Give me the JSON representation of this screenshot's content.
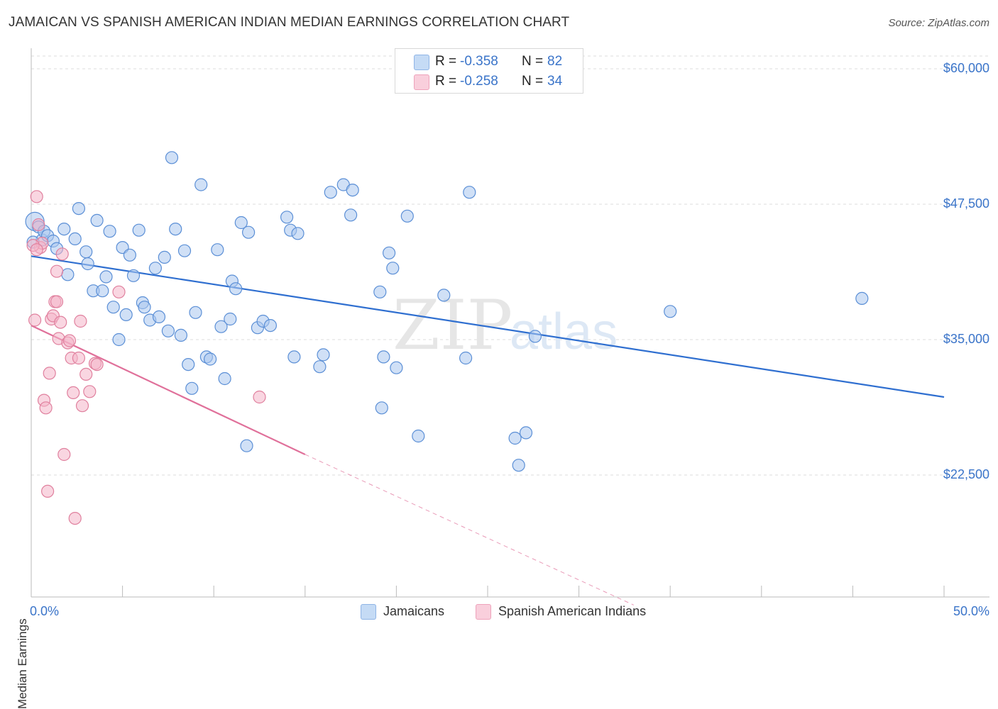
{
  "title": "JAMAICAN VS SPANISH AMERICAN INDIAN MEDIAN EARNINGS CORRELATION CHART",
  "source": "Source: ZipAtlas.com",
  "watermark": {
    "zip": "ZIP",
    "atlas": "atlas"
  },
  "legend": {
    "rows": [
      {
        "r_label": "R =",
        "r_value": "-0.358",
        "n_label": "N =",
        "n_value": "82",
        "color": "#a9c7ee"
      },
      {
        "r_label": "R =",
        "r_value": "-0.258",
        "n_label": "N =",
        "n_value": "34",
        "color": "#f4b5c8"
      }
    ]
  },
  "bottom_legend": [
    {
      "label": "Jamaicans",
      "color": "#a9c7ee"
    },
    {
      "label": "Spanish American Indians",
      "color": "#f4b5c8"
    }
  ],
  "chart_data": {
    "type": "scatter",
    "title": "JAMAICAN VS SPANISH AMERICAN INDIAN MEDIAN EARNINGS CORRELATION CHART",
    "xlabel": "",
    "ylabel": "Median Earnings",
    "xlim": [
      0,
      50
    ],
    "ylim": [
      11000,
      62000
    ],
    "x_tick_labels": [
      "0.0%",
      "50.0%"
    ],
    "y_ticks": [
      22500,
      35000,
      47500,
      60000
    ],
    "y_tick_labels": [
      "$22,500",
      "$35,000",
      "$47,500",
      "$60,000"
    ],
    "grid": true,
    "legend_placement": "top-center",
    "series": [
      {
        "name": "Jamaicans",
        "color": "#a9c7ee",
        "stroke": "#5b8fd6",
        "trend": {
          "x": [
            0,
            50
          ],
          "y": [
            42700,
            29700
          ],
          "color": "#2f6fd0"
        },
        "points": [
          [
            0.2,
            45.9
          ],
          [
            0.4,
            45.4
          ],
          [
            0.6,
            44.2
          ],
          [
            0.7,
            45.0
          ],
          [
            0.9,
            44.6
          ],
          [
            1.2,
            44.1
          ],
          [
            1.4,
            43.4
          ],
          [
            1.8,
            45.2
          ],
          [
            2.0,
            41.0
          ],
          [
            2.4,
            44.3
          ],
          [
            2.6,
            47.1
          ],
          [
            3.0,
            43.1
          ],
          [
            3.1,
            42.0
          ],
          [
            3.4,
            39.5
          ],
          [
            3.6,
            46.0
          ],
          [
            3.9,
            39.5
          ],
          [
            4.1,
            40.8
          ],
          [
            4.3,
            45.0
          ],
          [
            4.5,
            38.0
          ],
          [
            4.8,
            35.0
          ],
          [
            5.0,
            43.5
          ],
          [
            5.2,
            37.3
          ],
          [
            5.4,
            42.8
          ],
          [
            5.6,
            40.9
          ],
          [
            5.9,
            45.1
          ],
          [
            6.1,
            38.4
          ],
          [
            6.2,
            38.0
          ],
          [
            6.5,
            36.8
          ],
          [
            6.8,
            41.6
          ],
          [
            7.0,
            37.1
          ],
          [
            7.3,
            42.6
          ],
          [
            7.5,
            35.8
          ],
          [
            7.7,
            51.8
          ],
          [
            7.9,
            45.2
          ],
          [
            8.2,
            35.4
          ],
          [
            8.4,
            43.2
          ],
          [
            8.6,
            32.7
          ],
          [
            8.8,
            30.5
          ],
          [
            9.0,
            37.5
          ],
          [
            9.3,
            49.3
          ],
          [
            9.6,
            33.4
          ],
          [
            9.8,
            33.2
          ],
          [
            10.2,
            43.3
          ],
          [
            10.4,
            36.2
          ],
          [
            10.6,
            31.4
          ],
          [
            10.9,
            36.9
          ],
          [
            11.0,
            40.4
          ],
          [
            11.2,
            39.7
          ],
          [
            11.5,
            45.8
          ],
          [
            11.8,
            25.2
          ],
          [
            11.9,
            44.9
          ],
          [
            12.4,
            36.1
          ],
          [
            12.7,
            36.7
          ],
          [
            13.1,
            36.3
          ],
          [
            14.0,
            46.3
          ],
          [
            14.2,
            45.1
          ],
          [
            14.4,
            33.4
          ],
          [
            14.6,
            44.8
          ],
          [
            15.8,
            32.5
          ],
          [
            16.0,
            33.6
          ],
          [
            16.4,
            48.6
          ],
          [
            17.1,
            49.3
          ],
          [
            17.5,
            46.5
          ],
          [
            17.6,
            48.8
          ],
          [
            19.1,
            39.4
          ],
          [
            19.2,
            28.7
          ],
          [
            19.3,
            33.4
          ],
          [
            19.6,
            43.0
          ],
          [
            19.8,
            41.6
          ],
          [
            20.0,
            32.4
          ],
          [
            20.6,
            46.4
          ],
          [
            21.2,
            26.1
          ],
          [
            22.6,
            39.1
          ],
          [
            23.8,
            33.3
          ],
          [
            24.0,
            48.6
          ],
          [
            26.5,
            25.9
          ],
          [
            26.7,
            23.4
          ],
          [
            27.1,
            26.4
          ],
          [
            27.6,
            35.3
          ],
          [
            35.0,
            37.6
          ],
          [
            45.5,
            38.8
          ],
          [
            0.1,
            44.0
          ]
        ]
      },
      {
        "name": "Spanish American Indians",
        "color": "#f4b5c8",
        "stroke": "#e0809e",
        "trend": {
          "x": [
            0,
            15
          ],
          "y": [
            36300,
            24400
          ],
          "color": "#e0709a"
        },
        "trend_dashed": {
          "x": [
            15,
            33
          ],
          "y": [
            24400,
            10500
          ]
        },
        "points": [
          [
            0.2,
            36.8
          ],
          [
            0.3,
            48.2
          ],
          [
            0.4,
            45.6
          ],
          [
            0.5,
            43.5
          ],
          [
            0.6,
            43.9
          ],
          [
            0.7,
            29.4
          ],
          [
            0.8,
            28.7
          ],
          [
            0.9,
            21.0
          ],
          [
            1.0,
            31.9
          ],
          [
            1.1,
            36.9
          ],
          [
            1.2,
            37.2
          ],
          [
            1.3,
            38.5
          ],
          [
            1.4,
            41.3
          ],
          [
            1.4,
            38.5
          ],
          [
            1.5,
            35.1
          ],
          [
            1.6,
            36.6
          ],
          [
            1.7,
            42.9
          ],
          [
            1.8,
            24.4
          ],
          [
            2.0,
            34.7
          ],
          [
            2.1,
            34.9
          ],
          [
            2.2,
            33.3
          ],
          [
            2.3,
            30.1
          ],
          [
            2.4,
            18.5
          ],
          [
            2.6,
            33.3
          ],
          [
            2.7,
            36.7
          ],
          [
            2.8,
            28.9
          ],
          [
            3.0,
            31.8
          ],
          [
            3.2,
            30.2
          ],
          [
            3.5,
            32.8
          ],
          [
            3.6,
            32.7
          ],
          [
            4.8,
            39.4
          ],
          [
            12.5,
            29.7
          ],
          [
            0.1,
            43.7
          ],
          [
            0.3,
            43.3
          ]
        ]
      }
    ]
  }
}
